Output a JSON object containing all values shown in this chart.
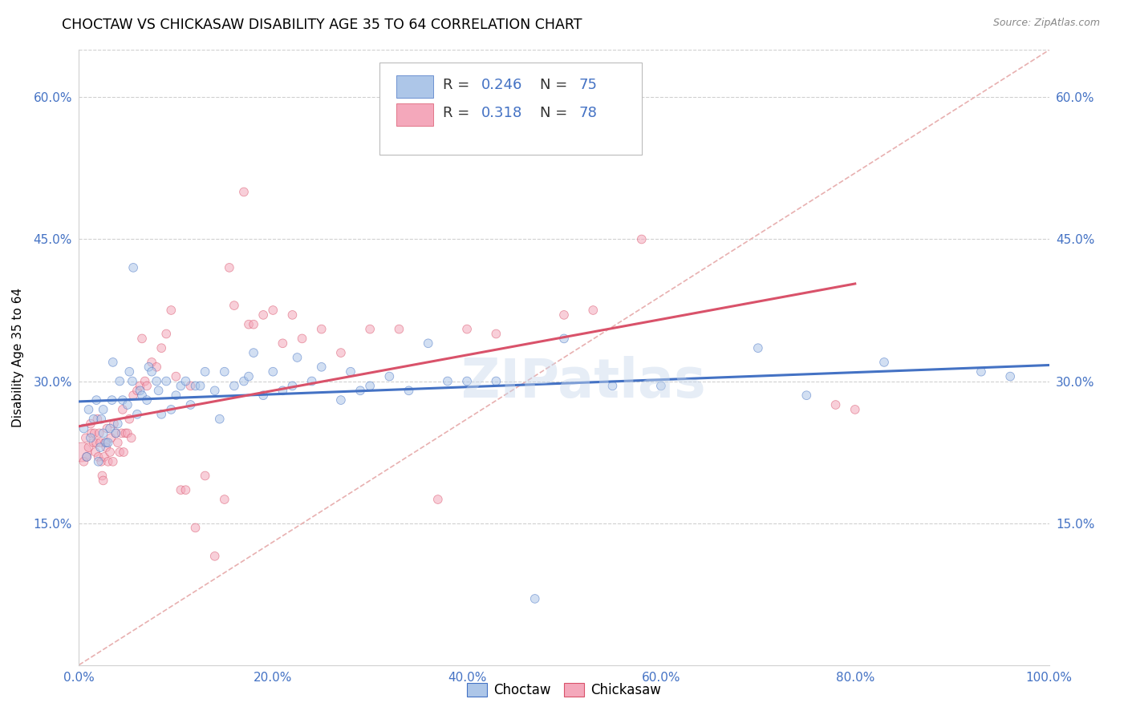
{
  "title": "CHOCTAW VS CHICKASAW DISABILITY AGE 35 TO 64 CORRELATION CHART",
  "source": "Source: ZipAtlas.com",
  "ylabel": "Disability Age 35 to 64",
  "choctaw_R": 0.246,
  "choctaw_N": 75,
  "chickasaw_R": 0.318,
  "chickasaw_N": 78,
  "choctaw_color": "#adc6e8",
  "chickasaw_color": "#f4a8bb",
  "choctaw_line_color": "#4472c4",
  "chickasaw_line_color": "#d9526a",
  "ref_line_color": "#cccccc",
  "watermark": "ZIPatlas",
  "xlim": [
    0.0,
    1.0
  ],
  "ylim": [
    0.0,
    0.65
  ],
  "xticks": [
    0.0,
    0.2,
    0.4,
    0.6,
    0.8,
    1.0
  ],
  "yticks": [
    0.15,
    0.3,
    0.45,
    0.6
  ],
  "xticklabels": [
    "0.0%",
    "20.0%",
    "40.0%",
    "60.0%",
    "80.0%",
    "100.0%"
  ],
  "yticklabels": [
    "15.0%",
    "30.0%",
    "45.0%",
    "60.0%"
  ],
  "choctaw_x": [
    0.005,
    0.008,
    0.01,
    0.012,
    0.015,
    0.018,
    0.02,
    0.022,
    0.023,
    0.025,
    0.025,
    0.028,
    0.03,
    0.032,
    0.034,
    0.035,
    0.038,
    0.04,
    0.042,
    0.045,
    0.05,
    0.052,
    0.055,
    0.056,
    0.06,
    0.063,
    0.065,
    0.07,
    0.072,
    0.075,
    0.08,
    0.082,
    0.085,
    0.09,
    0.095,
    0.1,
    0.105,
    0.11,
    0.115,
    0.12,
    0.125,
    0.13,
    0.14,
    0.145,
    0.15,
    0.16,
    0.17,
    0.175,
    0.18,
    0.19,
    0.2,
    0.21,
    0.22,
    0.225,
    0.24,
    0.25,
    0.27,
    0.28,
    0.29,
    0.3,
    0.32,
    0.34,
    0.36,
    0.38,
    0.4,
    0.43,
    0.47,
    0.5,
    0.55,
    0.6,
    0.7,
    0.75,
    0.83,
    0.93,
    0.96
  ],
  "choctaw_y": [
    0.25,
    0.22,
    0.27,
    0.24,
    0.26,
    0.28,
    0.215,
    0.23,
    0.26,
    0.245,
    0.27,
    0.235,
    0.235,
    0.25,
    0.28,
    0.32,
    0.245,
    0.255,
    0.3,
    0.28,
    0.275,
    0.31,
    0.3,
    0.42,
    0.265,
    0.29,
    0.285,
    0.28,
    0.315,
    0.31,
    0.3,
    0.29,
    0.265,
    0.3,
    0.27,
    0.285,
    0.295,
    0.3,
    0.275,
    0.295,
    0.295,
    0.31,
    0.29,
    0.26,
    0.31,
    0.295,
    0.3,
    0.305,
    0.33,
    0.285,
    0.31,
    0.29,
    0.295,
    0.325,
    0.3,
    0.315,
    0.28,
    0.31,
    0.29,
    0.295,
    0.305,
    0.29,
    0.34,
    0.3,
    0.3,
    0.3,
    0.07,
    0.345,
    0.295,
    0.295,
    0.335,
    0.285,
    0.32,
    0.31,
    0.305
  ],
  "choctaw_sizes": [
    60,
    60,
    60,
    60,
    60,
    60,
    60,
    60,
    60,
    60,
    60,
    60,
    60,
    60,
    60,
    60,
    60,
    60,
    60,
    60,
    60,
    60,
    60,
    60,
    60,
    60,
    60,
    60,
    60,
    60,
    60,
    60,
    60,
    60,
    60,
    60,
    60,
    60,
    60,
    60,
    60,
    60,
    60,
    60,
    60,
    60,
    60,
    60,
    60,
    60,
    60,
    60,
    60,
    60,
    60,
    60,
    60,
    60,
    60,
    60,
    60,
    60,
    60,
    60,
    60,
    60,
    60,
    60,
    60,
    60,
    60,
    60,
    60,
    60,
    60
  ],
  "chickasaw_x": [
    0.003,
    0.005,
    0.007,
    0.008,
    0.01,
    0.012,
    0.013,
    0.015,
    0.016,
    0.017,
    0.018,
    0.019,
    0.02,
    0.021,
    0.022,
    0.023,
    0.024,
    0.025,
    0.026,
    0.027,
    0.028,
    0.029,
    0.03,
    0.032,
    0.033,
    0.035,
    0.036,
    0.038,
    0.04,
    0.042,
    0.044,
    0.045,
    0.046,
    0.048,
    0.05,
    0.052,
    0.054,
    0.056,
    0.06,
    0.063,
    0.065,
    0.068,
    0.07,
    0.075,
    0.08,
    0.085,
    0.09,
    0.095,
    0.1,
    0.105,
    0.11,
    0.115,
    0.12,
    0.13,
    0.14,
    0.15,
    0.155,
    0.16,
    0.17,
    0.175,
    0.18,
    0.19,
    0.2,
    0.21,
    0.22,
    0.23,
    0.25,
    0.27,
    0.3,
    0.33,
    0.37,
    0.4,
    0.43,
    0.5,
    0.53,
    0.58,
    0.78,
    0.8
  ],
  "chickasaw_y": [
    0.225,
    0.215,
    0.24,
    0.22,
    0.23,
    0.255,
    0.245,
    0.235,
    0.245,
    0.225,
    0.235,
    0.26,
    0.22,
    0.245,
    0.235,
    0.215,
    0.2,
    0.195,
    0.22,
    0.235,
    0.23,
    0.25,
    0.215,
    0.225,
    0.24,
    0.215,
    0.255,
    0.245,
    0.235,
    0.225,
    0.245,
    0.27,
    0.225,
    0.245,
    0.245,
    0.26,
    0.24,
    0.285,
    0.29,
    0.295,
    0.345,
    0.3,
    0.295,
    0.32,
    0.315,
    0.335,
    0.35,
    0.375,
    0.305,
    0.185,
    0.185,
    0.295,
    0.145,
    0.2,
    0.115,
    0.175,
    0.42,
    0.38,
    0.5,
    0.36,
    0.36,
    0.37,
    0.375,
    0.34,
    0.37,
    0.345,
    0.355,
    0.33,
    0.355,
    0.355,
    0.175,
    0.355,
    0.35,
    0.37,
    0.375,
    0.45,
    0.275,
    0.27
  ],
  "chickasaw_sizes": [
    300,
    60,
    60,
    60,
    60,
    60,
    60,
    60,
    60,
    60,
    60,
    60,
    60,
    60,
    60,
    60,
    60,
    60,
    60,
    60,
    60,
    60,
    60,
    60,
    60,
    60,
    60,
    60,
    60,
    60,
    60,
    60,
    60,
    60,
    60,
    60,
    60,
    60,
    60,
    60,
    60,
    60,
    60,
    60,
    60,
    60,
    60,
    60,
    60,
    60,
    60,
    60,
    60,
    60,
    60,
    60,
    60,
    60,
    60,
    60,
    60,
    60,
    60,
    60,
    60,
    60,
    60,
    60,
    60,
    60,
    60,
    60,
    60,
    60,
    60,
    60,
    60,
    60
  ],
  "marker_alpha": 0.55,
  "axis_tick_color": "#4472c4",
  "title_fontsize": 12.5,
  "tick_fontsize": 11,
  "legend_fontsize": 13
}
